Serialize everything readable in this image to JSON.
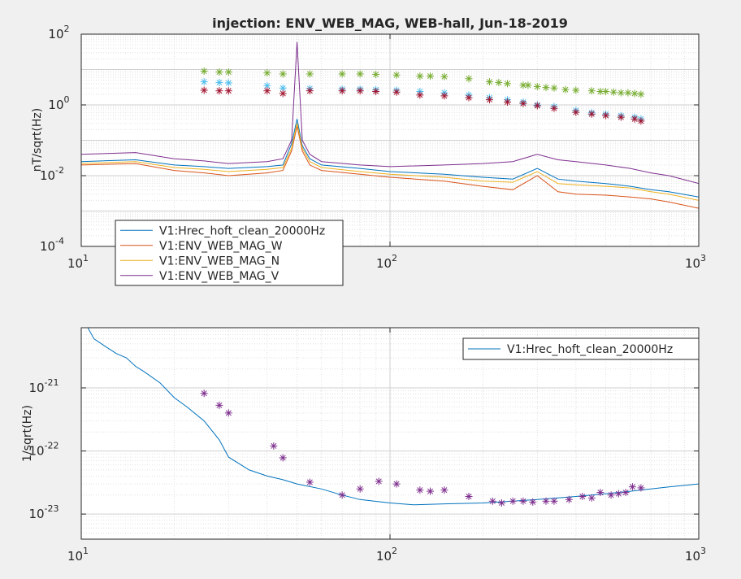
{
  "chart_data": [
    {
      "type": "line",
      "title": "injection: ENV_WEB_MAG, WEB-hall, Jun-18-2019",
      "xlabel": "",
      "ylabel": "nT/sqrt(Hz)",
      "xscale": "log",
      "yscale": "log",
      "xlim": [
        10,
        1000
      ],
      "ylim": [
        0.0001,
        100
      ],
      "grid": true,
      "x_ticks": [
        {
          "value": 10,
          "base": "10",
          "exp": "1"
        },
        {
          "value": 100,
          "base": "10",
          "exp": "2"
        },
        {
          "value": 1000,
          "base": "10",
          "exp": "3"
        }
      ],
      "y_ticks": [
        {
          "value": 0.0001,
          "base": "10",
          "exp": "-4"
        },
        {
          "value": 0.01,
          "base": "10",
          "exp": "-2"
        },
        {
          "value": 1,
          "base": "10",
          "exp": "0"
        },
        {
          "value": 100,
          "base": "10",
          "exp": "2"
        }
      ],
      "legend_position": "bottom-left",
      "series": [
        {
          "name": "V1:Hrec_hoft_clean_20000Hz",
          "color": "#0072bd",
          "style": "line",
          "x": [
            10,
            15,
            20,
            25,
            30,
            40,
            45,
            48,
            50,
            52,
            55,
            60,
            80,
            100,
            150,
            200,
            250,
            300,
            350,
            400,
            500,
            600,
            700,
            800,
            1000
          ],
          "y": [
            0.025,
            0.028,
            0.02,
            0.018,
            0.016,
            0.018,
            0.02,
            0.08,
            0.4,
            0.07,
            0.03,
            0.02,
            0.016,
            0.013,
            0.011,
            0.009,
            0.008,
            0.016,
            0.008,
            0.007,
            0.006,
            0.005,
            0.004,
            0.0035,
            0.0025
          ]
        },
        {
          "name": "V1:ENV_WEB_MAG_W",
          "color": "#d95319",
          "style": "line",
          "x": [
            10,
            15,
            20,
            25,
            30,
            40,
            45,
            48,
            50,
            52,
            55,
            60,
            80,
            100,
            150,
            200,
            250,
            300,
            350,
            400,
            500,
            600,
            700,
            800,
            1000
          ],
          "y": [
            0.02,
            0.022,
            0.014,
            0.012,
            0.01,
            0.012,
            0.014,
            0.05,
            0.25,
            0.05,
            0.02,
            0.014,
            0.011,
            0.009,
            0.007,
            0.005,
            0.004,
            0.01,
            0.0035,
            0.003,
            0.0028,
            0.0025,
            0.0022,
            0.0018,
            0.0012
          ]
        },
        {
          "name": "V1:ENV_WEB_MAG_N",
          "color": "#edb120",
          "style": "line",
          "x": [
            10,
            15,
            20,
            25,
            30,
            40,
            45,
            48,
            50,
            52,
            55,
            60,
            80,
            100,
            150,
            200,
            250,
            300,
            350,
            400,
            500,
            600,
            700,
            800,
            1000
          ],
          "y": [
            0.022,
            0.025,
            0.017,
            0.015,
            0.013,
            0.015,
            0.017,
            0.06,
            0.3,
            0.06,
            0.025,
            0.017,
            0.013,
            0.011,
            0.009,
            0.007,
            0.0065,
            0.013,
            0.006,
            0.0055,
            0.005,
            0.0045,
            0.0035,
            0.003,
            0.002
          ]
        },
        {
          "name": "V1:ENV_WEB_MAG_V",
          "color": "#7e2f8e",
          "style": "line",
          "x": [
            10,
            15,
            20,
            25,
            30,
            40,
            45,
            48,
            50,
            52,
            55,
            60,
            80,
            100,
            150,
            200,
            250,
            300,
            350,
            400,
            500,
            600,
            700,
            800,
            1000
          ],
          "y": [
            0.04,
            0.045,
            0.03,
            0.026,
            0.022,
            0.025,
            0.03,
            0.1,
            60,
            0.1,
            0.04,
            0.025,
            0.02,
            0.018,
            0.02,
            0.022,
            0.025,
            0.04,
            0.028,
            0.025,
            0.02,
            0.016,
            0.012,
            0.01,
            0.006
          ]
        },
        {
          "name": "",
          "color": "#77ac30",
          "style": "marker",
          "x": [
            25,
            28,
            30,
            40,
            45,
            55,
            70,
            80,
            90,
            105,
            125,
            135,
            150,
            180,
            210,
            225,
            240,
            270,
            280,
            300,
            320,
            340,
            370,
            400,
            450,
            480,
            500,
            530,
            560,
            590,
            620,
            650
          ],
          "y": [
            9,
            8.5,
            8.5,
            8,
            7.5,
            7.5,
            7.5,
            7.5,
            7.3,
            7,
            6.5,
            6.5,
            6.3,
            5.5,
            4.5,
            4.3,
            4,
            3.6,
            3.6,
            3.3,
            3.1,
            3,
            2.7,
            2.6,
            2.5,
            2.4,
            2.4,
            2.3,
            2.2,
            2.2,
            2.1,
            2
          ]
        },
        {
          "name": "",
          "color": "#4dbeee",
          "style": "marker",
          "x": [
            25,
            28,
            30,
            40,
            45,
            55,
            70,
            80,
            90,
            105,
            125,
            150,
            180,
            210,
            240,
            270,
            300,
            340,
            400,
            450,
            500,
            560,
            620,
            650
          ],
          "y": [
            4.5,
            4.3,
            4.2,
            3.5,
            3,
            2.9,
            2.8,
            2.8,
            2.7,
            2.6,
            2.4,
            2.2,
            1.9,
            1.6,
            1.4,
            1.2,
            1,
            0.9,
            0.7,
            0.6,
            0.55,
            0.5,
            0.45,
            0.4
          ]
        },
        {
          "name": "",
          "color": "#a2142f",
          "style": "marker",
          "x": [
            25,
            28,
            30,
            40,
            45,
            55,
            70,
            80,
            90,
            105,
            125,
            150,
            180,
            210,
            240,
            270,
            300,
            340,
            400,
            450,
            500,
            560,
            620,
            650
          ],
          "y": [
            2.6,
            2.5,
            2.5,
            2.5,
            2.1,
            2.5,
            2.5,
            2.5,
            2.4,
            2.3,
            1.9,
            1.8,
            1.6,
            1.4,
            1.2,
            1.1,
            0.95,
            0.8,
            0.62,
            0.55,
            0.5,
            0.45,
            0.4,
            0.35
          ]
        }
      ]
    },
    {
      "type": "line",
      "title": "",
      "xlabel": "",
      "ylabel": "1/sqrt(Hz)",
      "xscale": "log",
      "yscale": "log",
      "xlim": [
        10,
        1000
      ],
      "ylim": [
        4e-24,
        9e-21
      ],
      "grid": true,
      "x_ticks": [
        {
          "value": 10,
          "base": "10",
          "exp": "1"
        },
        {
          "value": 100,
          "base": "10",
          "exp": "2"
        },
        {
          "value": 1000,
          "base": "10",
          "exp": "3"
        }
      ],
      "y_ticks": [
        {
          "value": 1e-23,
          "base": "10",
          "exp": "-23"
        },
        {
          "value": 1e-22,
          "base": "10",
          "exp": "-22"
        },
        {
          "value": 1e-21,
          "base": "10",
          "exp": "-21"
        }
      ],
      "legend_position": "top-right",
      "series": [
        {
          "name": "V1:Hrec_hoft_clean_20000Hz",
          "color": "#0072bd",
          "style": "line",
          "x": [
            10.5,
            11,
            12,
            13,
            14,
            15,
            16,
            18,
            20,
            22,
            25,
            28,
            30,
            35,
            40,
            45,
            50,
            60,
            70,
            80,
            100,
            120,
            150,
            200,
            250,
            300,
            350,
            400,
            500,
            600,
            700,
            800,
            1000
          ],
          "y": [
            9e-21,
            6e-21,
            4.5e-21,
            3.5e-21,
            3e-21,
            2.2e-21,
            1.8e-21,
            1.2e-21,
            7e-22,
            5e-22,
            3e-22,
            1.5e-22,
            8e-23,
            5e-23,
            4e-23,
            3.5e-23,
            3e-23,
            2.5e-23,
            2e-23,
            1.7e-23,
            1.5e-23,
            1.4e-23,
            1.45e-23,
            1.5e-23,
            1.6e-23,
            1.7e-23,
            1.8e-23,
            1.9e-23,
            2.1e-23,
            2.3e-23,
            2.5e-23,
            2.7e-23,
            3e-23
          ]
        },
        {
          "name": "",
          "color": "#7e2f8e",
          "style": "marker",
          "x": [
            25,
            28,
            30,
            42,
            45,
            55,
            70,
            80,
            92,
            105,
            125,
            135,
            150,
            180,
            215,
            230,
            250,
            270,
            290,
            320,
            340,
            380,
            420,
            450,
            480,
            520,
            550,
            580,
            610,
            650
          ],
          "y": [
            8.2e-22,
            5.3e-22,
            4e-22,
            1.2e-22,
            7.8e-23,
            3.2e-23,
            2e-23,
            2.5e-23,
            3.3e-23,
            3e-23,
            2.4e-23,
            2.3e-23,
            2.4e-23,
            1.9e-23,
            1.6e-23,
            1.5e-23,
            1.6e-23,
            1.6e-23,
            1.55e-23,
            1.6e-23,
            1.6e-23,
            1.7e-23,
            1.9e-23,
            1.8e-23,
            2.2e-23,
            2e-23,
            2.1e-23,
            2.2e-23,
            2.7e-23,
            2.6e-23
          ]
        }
      ]
    }
  ]
}
